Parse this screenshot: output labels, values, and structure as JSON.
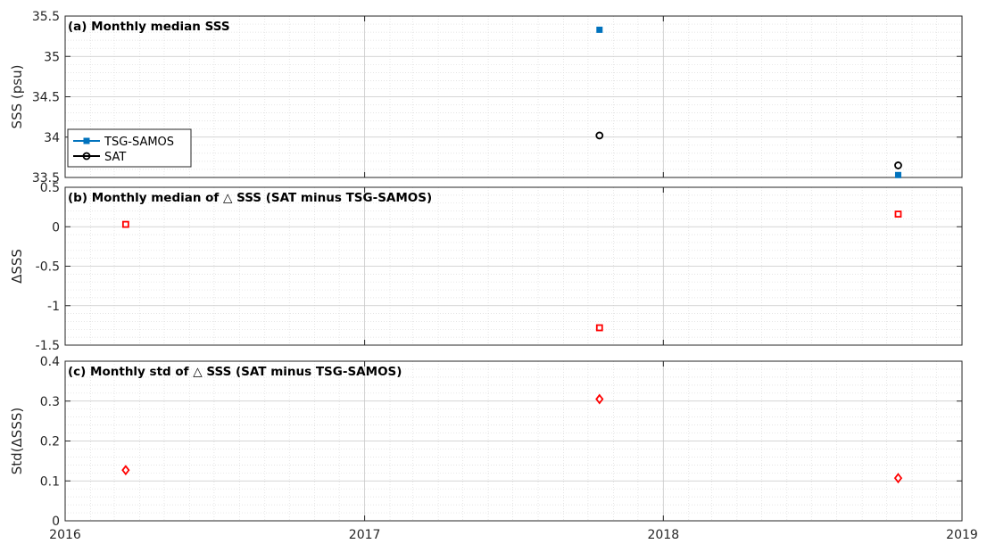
{
  "chart_data": [
    {
      "type": "scatter",
      "title": "(a) Monthly median SSS",
      "xlabel": "",
      "ylabel": "SSS (psu)",
      "xlim": [
        "2016-01-01",
        "2019-01-01"
      ],
      "ylim": [
        33.5,
        35.5
      ],
      "yticks": [
        "33.5",
        "34",
        "34.5",
        "35",
        "35.5"
      ],
      "grid": true,
      "legend_position": "left",
      "series": [
        {
          "name": "TSG-SAMOS",
          "color": "#0072BD",
          "marker": "filled-square",
          "points": [
            [
              "2017-10-15",
              35.33
            ],
            [
              "2018-10-15",
              33.53
            ]
          ]
        },
        {
          "name": "SAT",
          "color": "#000000",
          "marker": "open-circle",
          "points": [
            [
              "2017-10-15",
              34.02
            ],
            [
              "2018-10-15",
              33.65
            ]
          ]
        }
      ]
    },
    {
      "type": "scatter",
      "title": "(b) Monthly median of △ SSS (SAT minus TSG-SAMOS)",
      "xlabel": "",
      "ylabel": "ΔSSS",
      "xlim": [
        "2016-01-01",
        "2019-01-01"
      ],
      "ylim": [
        -1.5,
        0.5
      ],
      "yticks": [
        "-1.5",
        "-1",
        "-0.5",
        "0",
        "0.5"
      ],
      "grid": true,
      "series": [
        {
          "color": "#FF0000",
          "marker": "open-square",
          "points": [
            [
              "2016-03-15",
              0.03
            ],
            [
              "2017-10-15",
              -1.28
            ],
            [
              "2018-10-15",
              0.16
            ]
          ]
        }
      ]
    },
    {
      "type": "scatter",
      "title": "(c) Monthly std of △ SSS (SAT minus TSG-SAMOS)",
      "xlabel": "",
      "ylabel": "Std(ΔSSS)",
      "xlim": [
        "2016-01-01",
        "2019-01-01"
      ],
      "ylim": [
        0,
        0.4
      ],
      "yticks": [
        "0",
        "0.1",
        "0.2",
        "0.3",
        "0.4"
      ],
      "xticks": [
        "2016",
        "2017",
        "2018",
        "2019"
      ],
      "grid": true,
      "series": [
        {
          "color": "#FF0000",
          "marker": "open-diamond",
          "points": [
            [
              "2016-03-15",
              0.127
            ],
            [
              "2017-10-15",
              0.305
            ],
            [
              "2018-10-15",
              0.107
            ]
          ]
        }
      ]
    }
  ]
}
